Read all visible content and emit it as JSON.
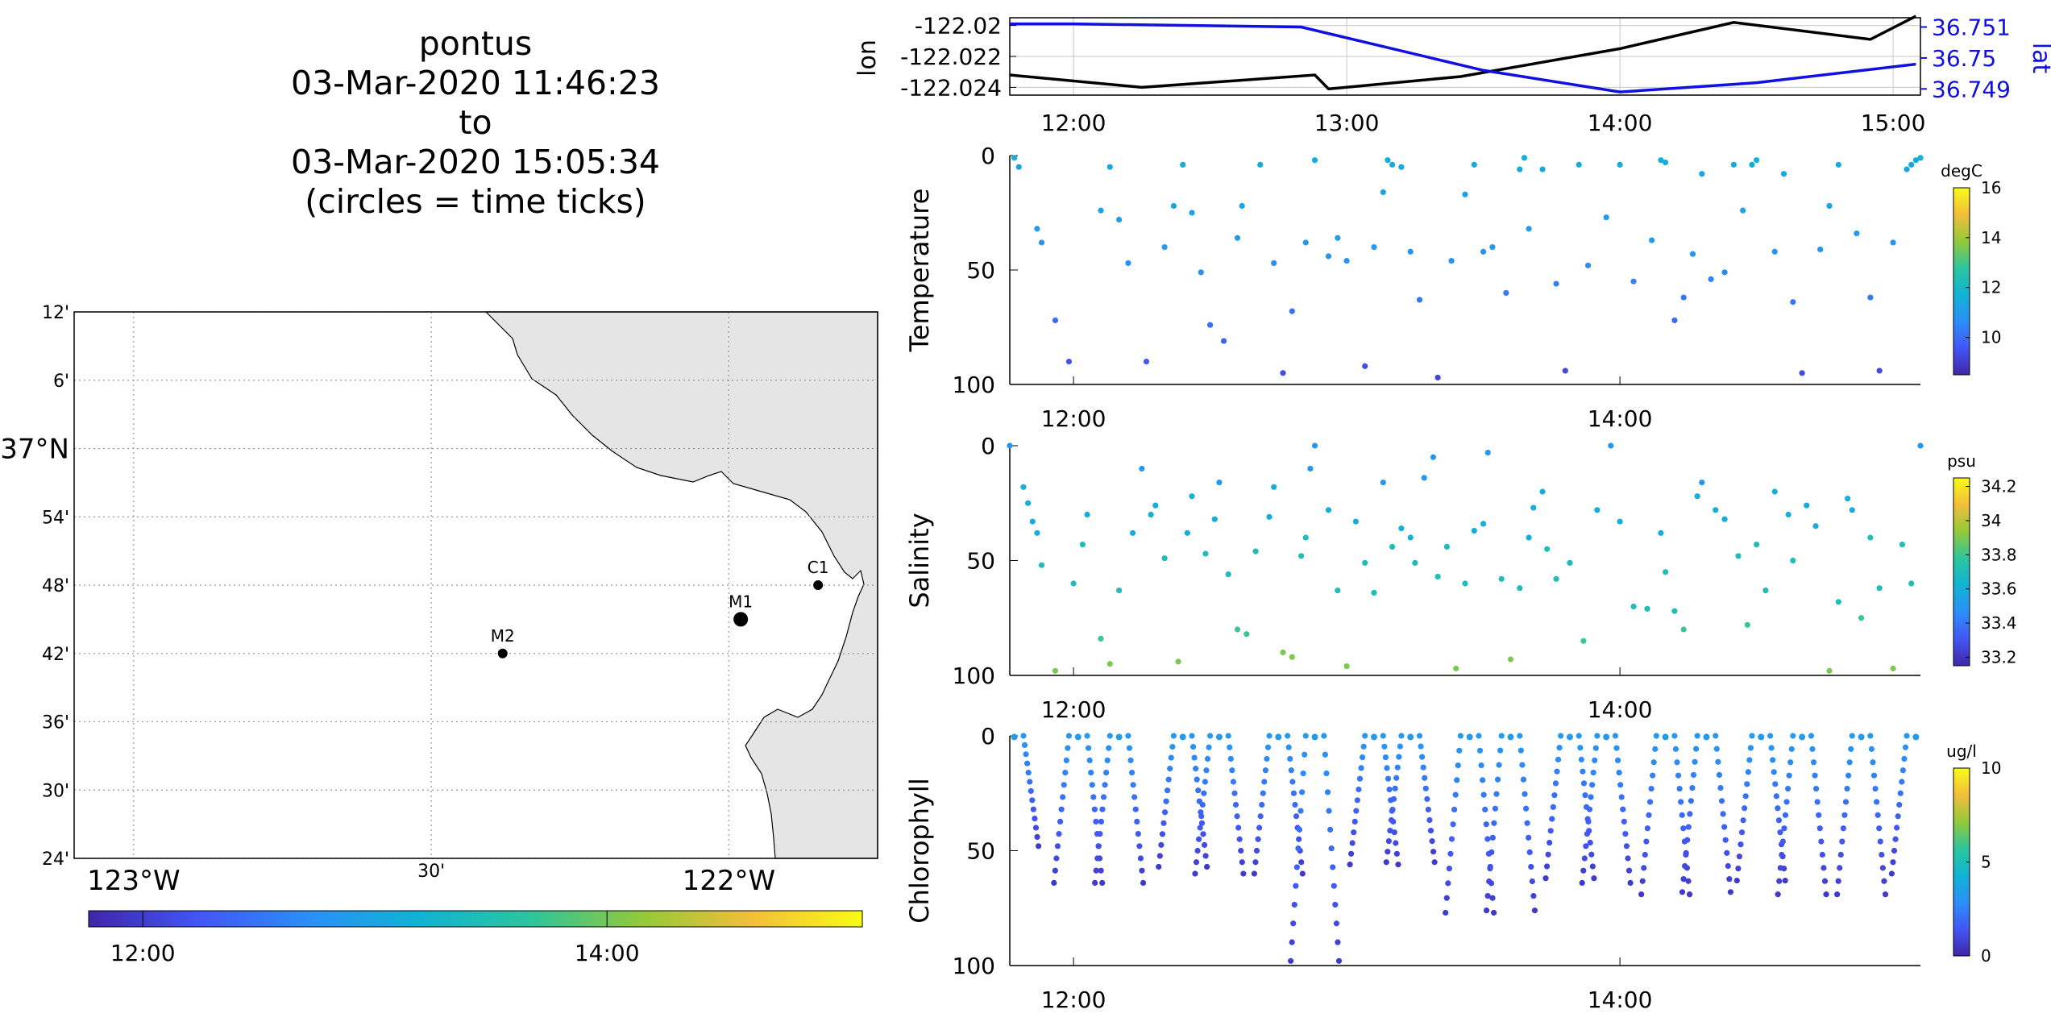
{
  "title": {
    "platform": "pontus",
    "start": "03-Mar-2020 11:46:23",
    "to": "to",
    "end": "03-Mar-2020 15:05:34",
    "note": "(circles = time ticks)"
  },
  "colors": {
    "lon_line": "#000000",
    "lat_line": "#1010e0",
    "land": "#e5e5e5",
    "grid": "#b8b8b8"
  },
  "colormap_stops": [
    "#3e26a8",
    "#4356f4",
    "#2b8ff7",
    "#10b3d4",
    "#2dc59d",
    "#93c93a",
    "#f3be3a",
    "#f9fb15"
  ],
  "map": {
    "lat_ticks": [
      "12'",
      "6'",
      "37°N",
      "54'",
      "48'",
      "42'",
      "36'",
      "30'",
      "24'"
    ],
    "lat_values": [
      37.2,
      37.1,
      37.0,
      36.9,
      36.8,
      36.7,
      36.6,
      36.5,
      36.4
    ],
    "lon_ticks": [
      "123°W",
      "30'",
      "122°W"
    ],
    "lon_values": [
      -122.9,
      -122.4,
      -121.9
    ],
    "xlim": [
      -123.0,
      -121.65
    ],
    "ylim": [
      36.4,
      37.2
    ],
    "stations": [
      {
        "name": "C1",
        "lon": -121.75,
        "lat": 36.8
      },
      {
        "name": "M1",
        "lon": -121.88,
        "lat": 36.75
      },
      {
        "name": "M2",
        "lon": -122.28,
        "lat": 36.7
      }
    ],
    "colorbar_ticks": [
      "12:00",
      "14:00"
    ]
  },
  "lonlat": {
    "ylabel_left": "lon",
    "ylabel_right": "lat",
    "left_ticks": [
      "-122.02",
      "-122.022",
      "-122.024"
    ],
    "right_ticks": [
      "36.751",
      "36.75",
      "36.749"
    ],
    "x_ticks": [
      "12:00",
      "13:00",
      "14:00",
      "15:00"
    ]
  },
  "chart_data": [
    {
      "type": "line",
      "title": "",
      "xlabel": "",
      "ylabel": "lon",
      "ylabel_right": "lat",
      "xlim": [
        "11:46",
        "15:06"
      ],
      "ylim": [
        -122.0245,
        -122.0195
      ],
      "ylim_right": [
        36.7488,
        36.7513
      ],
      "grid": true,
      "series": [
        {
          "name": "lon",
          "axis": "left",
          "x": [
            "11:46",
            "12:15",
            "12:53",
            "12:56",
            "13:25",
            "14:00",
            "14:25",
            "14:55",
            "15:05"
          ],
          "values": [
            -122.0232,
            -122.024,
            -122.0232,
            -122.0241,
            -122.0233,
            -122.0215,
            -122.0198,
            -122.0209,
            -122.0194
          ]
        },
        {
          "name": "lat",
          "axis": "right",
          "x": [
            "11:46",
            "12:00",
            "12:50",
            "13:30",
            "14:00",
            "14:30",
            "15:05"
          ],
          "values": [
            36.7511,
            36.7511,
            36.751,
            36.7496,
            36.7489,
            36.7492,
            36.7498
          ]
        }
      ]
    },
    {
      "type": "scatter",
      "title": "",
      "xlabel": "",
      "ylabel": "Temperature",
      "units": "degC",
      "y_reversed": true,
      "ylim": [
        0,
        100
      ],
      "xlim": [
        "11:46",
        "15:06"
      ],
      "x_ticks": [
        "12:00",
        "14:00"
      ],
      "y_ticks": [
        "0",
        "50",
        "100"
      ],
      "colorbar_ticks": [
        "16",
        "14",
        "12",
        "10"
      ],
      "clim": [
        8.5,
        16
      ],
      "values_desc": "yo-yo profile samples: time (min since 11:46 not used, HH:MM), depth m, temperature degC",
      "points": [
        [
          "11:47",
          1,
          11.6
        ],
        [
          "11:48",
          5,
          11.3
        ],
        [
          "11:52",
          32,
          10.9
        ],
        [
          "11:53",
          38,
          10.8
        ],
        [
          "11:56",
          72,
          10.0
        ],
        [
          "11:59",
          90,
          9.5
        ],
        [
          "12:06",
          24,
          11.2
        ],
        [
          "12:08",
          5,
          11.4
        ],
        [
          "12:10",
          28,
          11.0
        ],
        [
          "12:12",
          47,
          10.7
        ],
        [
          "12:16",
          90,
          9.6
        ],
        [
          "12:20",
          40,
          10.9
        ],
        [
          "12:22",
          22,
          11.3
        ],
        [
          "12:24",
          4,
          11.5
        ],
        [
          "12:26",
          25,
          11.2
        ],
        [
          "12:28",
          51,
          10.6
        ],
        [
          "12:30",
          74,
          10.1
        ],
        [
          "12:33",
          81,
          9.8
        ],
        [
          "12:36",
          36,
          11.0
        ],
        [
          "12:37",
          22,
          11.3
        ],
        [
          "12:41",
          4,
          11.4
        ],
        [
          "12:44",
          47,
          10.6
        ],
        [
          "12:46",
          95,
          9.3
        ],
        [
          "12:48",
          68,
          10.1
        ],
        [
          "12:51",
          38,
          10.9
        ],
        [
          "12:53",
          2,
          11.5
        ],
        [
          "12:56",
          44,
          10.8
        ],
        [
          "12:58",
          36,
          11.0
        ],
        [
          "13:00",
          46,
          10.7
        ],
        [
          "13:04",
          92,
          9.4
        ],
        [
          "13:06",
          40,
          10.9
        ],
        [
          "13:08",
          16,
          11.3
        ],
        [
          "13:09",
          2,
          11.6
        ],
        [
          "13:10",
          4,
          11.5
        ],
        [
          "13:12",
          5,
          11.4
        ],
        [
          "13:14",
          42,
          10.8
        ],
        [
          "13:16",
          63,
          10.2
        ],
        [
          "13:20",
          97,
          9.2
        ],
        [
          "13:23",
          46,
          10.7
        ],
        [
          "13:26",
          17,
          11.3
        ],
        [
          "13:28",
          4,
          11.5
        ],
        [
          "13:30",
          42,
          10.8
        ],
        [
          "13:32",
          40,
          10.9
        ],
        [
          "13:35",
          60,
          10.3
        ],
        [
          "13:38",
          6,
          11.4
        ],
        [
          "13:39",
          1,
          11.6
        ],
        [
          "13:40",
          32,
          11.0
        ],
        [
          "13:43",
          6,
          11.4
        ],
        [
          "13:46",
          56,
          10.4
        ],
        [
          "13:48",
          94,
          9.3
        ],
        [
          "13:51",
          4,
          11.5
        ],
        [
          "13:53",
          48,
          10.6
        ],
        [
          "13:57",
          27,
          11.1
        ],
        [
          "14:00",
          4,
          11.5
        ],
        [
          "14:03",
          55,
          10.4
        ],
        [
          "14:07",
          37,
          11.0
        ],
        [
          "14:09",
          2,
          11.6
        ],
        [
          "14:10",
          3,
          11.6
        ],
        [
          "14:12",
          72,
          10.0
        ],
        [
          "14:14",
          62,
          10.2
        ],
        [
          "14:16",
          43,
          10.8
        ],
        [
          "14:18",
          8,
          11.4
        ],
        [
          "14:20",
          54,
          10.4
        ],
        [
          "14:23",
          51,
          10.5
        ],
        [
          "14:25",
          4,
          11.5
        ],
        [
          "14:27",
          24,
          11.2
        ],
        [
          "14:29",
          4,
          11.5
        ],
        [
          "14:30",
          2,
          11.6
        ],
        [
          "14:34",
          42,
          10.8
        ],
        [
          "14:36",
          8,
          11.4
        ],
        [
          "14:38",
          64,
          10.2
        ],
        [
          "14:40",
          95,
          9.3
        ],
        [
          "14:44",
          41,
          10.9
        ],
        [
          "14:46",
          22,
          11.3
        ],
        [
          "14:48",
          4,
          11.5
        ],
        [
          "14:52",
          34,
          11.0
        ],
        [
          "14:55",
          62,
          10.2
        ],
        [
          "14:57",
          94,
          9.3
        ],
        [
          "15:00",
          38,
          10.9
        ],
        [
          "15:03",
          6,
          11.3
        ],
        [
          "15:04",
          4,
          11.4
        ],
        [
          "15:05",
          2,
          11.5
        ],
        [
          "15:06",
          1,
          11.6
        ]
      ]
    },
    {
      "type": "scatter",
      "title": "",
      "xlabel": "",
      "ylabel": "Salinity",
      "units": "psu",
      "y_reversed": true,
      "ylim": [
        0,
        100
      ],
      "xlim": [
        "11:46",
        "15:06"
      ],
      "x_ticks": [
        "12:00",
        "14:00"
      ],
      "y_ticks": [
        "0",
        "50",
        "100"
      ],
      "colorbar_ticks": [
        "34.2",
        "34",
        "33.8",
        "33.6",
        "33.4",
        "33.2"
      ],
      "clim": [
        33.15,
        34.25
      ],
      "points": [
        [
          "11:46",
          0,
          33.5
        ],
        [
          "11:49",
          18,
          33.6
        ],
        [
          "11:50",
          25,
          33.6
        ],
        [
          "11:51",
          33,
          33.6
        ],
        [
          "11:52",
          38,
          33.6
        ],
        [
          "11:53",
          52,
          33.7
        ],
        [
          "11:56",
          98,
          33.9
        ],
        [
          "12:00",
          60,
          33.7
        ],
        [
          "12:02",
          43,
          33.7
        ],
        [
          "12:03",
          30,
          33.6
        ],
        [
          "12:06",
          84,
          33.8
        ],
        [
          "12:08",
          95,
          33.9
        ],
        [
          "12:10",
          63,
          33.7
        ],
        [
          "12:13",
          38,
          33.6
        ],
        [
          "12:15",
          10,
          33.5
        ],
        [
          "12:17",
          30,
          33.6
        ],
        [
          "12:18",
          26,
          33.6
        ],
        [
          "12:20",
          49,
          33.7
        ],
        [
          "12:23",
          94,
          33.9
        ],
        [
          "12:25",
          38,
          33.6
        ],
        [
          "12:26",
          22,
          33.6
        ],
        [
          "12:29",
          47,
          33.7
        ],
        [
          "12:31",
          32,
          33.6
        ],
        [
          "12:32",
          16,
          33.5
        ],
        [
          "12:34",
          56,
          33.7
        ],
        [
          "12:36",
          80,
          33.8
        ],
        [
          "12:38",
          82,
          33.8
        ],
        [
          "12:40",
          46,
          33.7
        ],
        [
          "12:43",
          31,
          33.6
        ],
        [
          "12:44",
          18,
          33.6
        ],
        [
          "12:46",
          90,
          33.9
        ],
        [
          "12:48",
          92,
          33.9
        ],
        [
          "12:50",
          48,
          33.7
        ],
        [
          "12:51",
          40,
          33.7
        ],
        [
          "12:52",
          10,
          33.5
        ],
        [
          "12:53",
          0,
          33.5
        ],
        [
          "12:56",
          28,
          33.6
        ],
        [
          "12:58",
          63,
          33.7
        ],
        [
          "13:00",
          96,
          33.9
        ],
        [
          "13:02",
          33,
          33.6
        ],
        [
          "13:04",
          51,
          33.7
        ],
        [
          "13:06",
          64,
          33.7
        ],
        [
          "13:08",
          16,
          33.5
        ],
        [
          "13:10",
          44,
          33.7
        ],
        [
          "13:12",
          36,
          33.6
        ],
        [
          "13:14",
          40,
          33.6
        ],
        [
          "13:15",
          51,
          33.7
        ],
        [
          "13:17",
          14,
          33.5
        ],
        [
          "13:19",
          5,
          33.5
        ],
        [
          "13:20",
          57,
          33.7
        ],
        [
          "13:22",
          44,
          33.7
        ],
        [
          "13:24",
          97,
          33.9
        ],
        [
          "13:26",
          60,
          33.7
        ],
        [
          "13:28",
          37,
          33.6
        ],
        [
          "13:30",
          34,
          33.6
        ],
        [
          "13:31",
          3,
          33.5
        ],
        [
          "13:34",
          58,
          33.7
        ],
        [
          "13:36",
          93,
          33.9
        ],
        [
          "13:38",
          62,
          33.7
        ],
        [
          "13:40",
          40,
          33.6
        ],
        [
          "13:41",
          27,
          33.6
        ],
        [
          "13:43",
          20,
          33.6
        ],
        [
          "13:44",
          45,
          33.7
        ],
        [
          "13:46",
          58,
          33.7
        ],
        [
          "13:49",
          51,
          33.7
        ],
        [
          "13:52",
          85,
          33.8
        ],
        [
          "13:55",
          28,
          33.6
        ],
        [
          "13:58",
          0,
          33.5
        ],
        [
          "14:00",
          33,
          33.6
        ],
        [
          "14:03",
          70,
          33.7
        ],
        [
          "14:06",
          71,
          33.7
        ],
        [
          "14:09",
          38,
          33.6
        ],
        [
          "14:10",
          55,
          33.7
        ],
        [
          "14:12",
          72,
          33.7
        ],
        [
          "14:14",
          80,
          33.8
        ],
        [
          "14:17",
          22,
          33.6
        ],
        [
          "14:18",
          16,
          33.5
        ],
        [
          "14:21",
          28,
          33.6
        ],
        [
          "14:23",
          32,
          33.6
        ],
        [
          "14:26",
          48,
          33.7
        ],
        [
          "14:28",
          78,
          33.8
        ],
        [
          "14:30",
          43,
          33.7
        ],
        [
          "14:32",
          63,
          33.7
        ],
        [
          "14:34",
          20,
          33.6
        ],
        [
          "14:37",
          30,
          33.6
        ],
        [
          "14:38",
          50,
          33.7
        ],
        [
          "14:41",
          26,
          33.6
        ],
        [
          "14:43",
          35,
          33.6
        ],
        [
          "14:46",
          98,
          33.9
        ],
        [
          "14:48",
          68,
          33.7
        ],
        [
          "14:50",
          23,
          33.6
        ],
        [
          "14:51",
          28,
          33.6
        ],
        [
          "14:53",
          75,
          33.8
        ],
        [
          "14:55",
          40,
          33.7
        ],
        [
          "14:57",
          62,
          33.7
        ],
        [
          "15:00",
          97,
          33.9
        ],
        [
          "15:02",
          43,
          33.7
        ],
        [
          "15:04",
          60,
          33.7
        ],
        [
          "15:06",
          0,
          33.5
        ]
      ]
    },
    {
      "type": "scatter",
      "title": "",
      "xlabel": "",
      "ylabel": "Chlorophyll",
      "units": "ug/l",
      "y_reversed": true,
      "ylim": [
        0,
        100
      ],
      "xlim": [
        "11:46",
        "15:06"
      ],
      "x_ticks": [
        "12:00",
        "14:00"
      ],
      "y_ticks": [
        "0",
        "50",
        "100"
      ],
      "colorbar_ticks": [
        "10",
        "5",
        "0"
      ],
      "clim": [
        0,
        10
      ],
      "profiles": [
        {
          "center": "11:47",
          "bottom": 48
        },
        {
          "center": "12:01",
          "bottom": 64
        },
        {
          "center": "12:10",
          "bottom": 64
        },
        {
          "center": "12:24",
          "bottom": 57
        },
        {
          "center": "12:32",
          "bottom": 60
        },
        {
          "center": "12:45",
          "bottom": 60
        },
        {
          "center": "12:53",
          "bottom": 98
        },
        {
          "center": "13:06",
          "bottom": 56
        },
        {
          "center": "13:14",
          "bottom": 55
        },
        {
          "center": "13:27",
          "bottom": 77
        },
        {
          "center": "13:36",
          "bottom": 76
        },
        {
          "center": "13:49",
          "bottom": 62
        },
        {
          "center": "13:57",
          "bottom": 64
        },
        {
          "center": "14:10",
          "bottom": 69
        },
        {
          "center": "14:19",
          "bottom": 68
        },
        {
          "center": "14:31",
          "bottom": 63
        },
        {
          "center": "14:40",
          "bottom": 69
        },
        {
          "center": "14:53",
          "bottom": 69
        },
        {
          "center": "15:05",
          "bottom": 60
        }
      ]
    }
  ]
}
